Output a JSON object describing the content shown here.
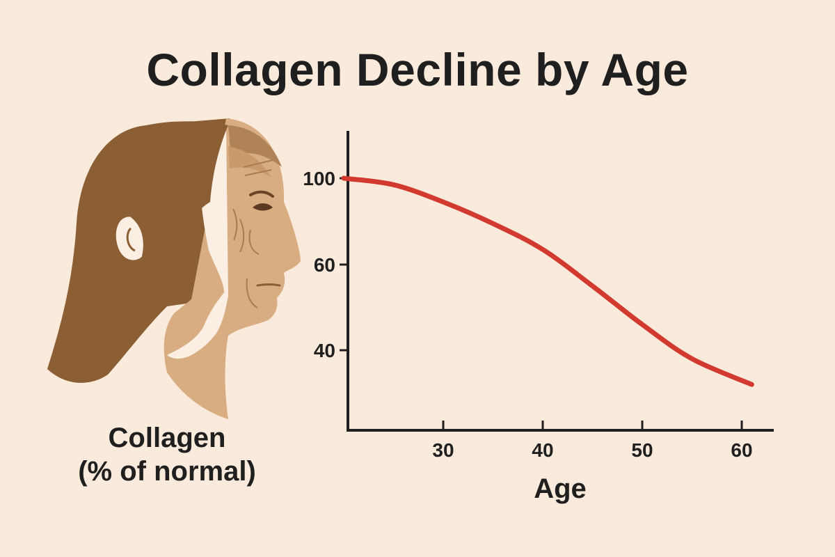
{
  "chart_data": {
    "type": "line",
    "title": "Collagen Decline by Age",
    "ylabel_lines": [
      "Collagen",
      "(% of normal)"
    ],
    "xlabel": "Age",
    "x_ticks": [
      30,
      40,
      50,
      60
    ],
    "y_ticks": [
      100,
      60,
      40
    ],
    "series": [
      {
        "color": "#d23a30",
        "x": [
          20,
          25,
          30,
          35,
          40,
          45,
          50,
          55,
          61
        ],
        "y": [
          100,
          97,
          89,
          79,
          67,
          55,
          46,
          38,
          32
        ]
      }
    ]
  },
  "colors": {
    "background": "#f9eadb",
    "line": "#d23a30",
    "axis": "#1f1f1f",
    "hair": "#8b5e34",
    "skin_young": "#fbeee2",
    "skin_old": "#d9ad82"
  },
  "illustration": {
    "icon": "woman-profile-young-and-old-icon"
  }
}
